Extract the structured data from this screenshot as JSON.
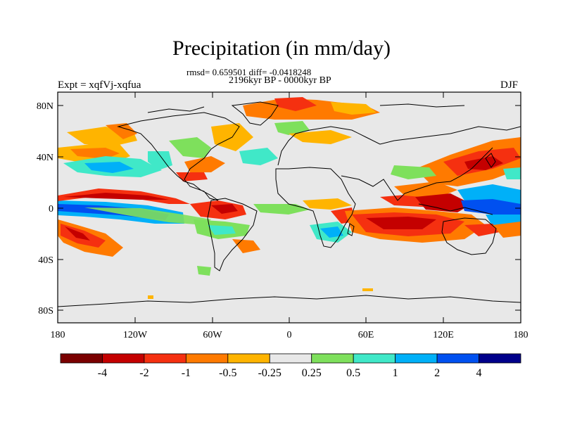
{
  "title": "Precipitation (in mm/day)",
  "stats_line": "rmsd= 0.659501 diff= -0.0418248",
  "period_line": "2196kyr BP - 0000kyr BP",
  "experiment": "Expt = xqfVj-xqfua",
  "season": "DJF",
  "lat_ticks": [
    "80N",
    "40N",
    "0",
    "40S",
    "80S"
  ],
  "lon_ticks": [
    "180",
    "120W",
    "60W",
    "0",
    "60E",
    "120E",
    "180"
  ],
  "colorbar": {
    "labels": [
      "-4",
      "-2",
      "-1",
      "-0.5",
      "-0.25",
      "0.25",
      "0.5",
      "1",
      "2",
      "4"
    ],
    "colors": [
      "#7a0000",
      "#c40000",
      "#f53010",
      "#ff7a00",
      "#ffb400",
      "#e8e8e8",
      "#7ee05c",
      "#40e8c8",
      "#00b0f8",
      "#0050f0",
      "#00008a"
    ]
  },
  "map_colors": {
    "ocean_bg": "#e8e8e8",
    "coast": "#000000"
  }
}
